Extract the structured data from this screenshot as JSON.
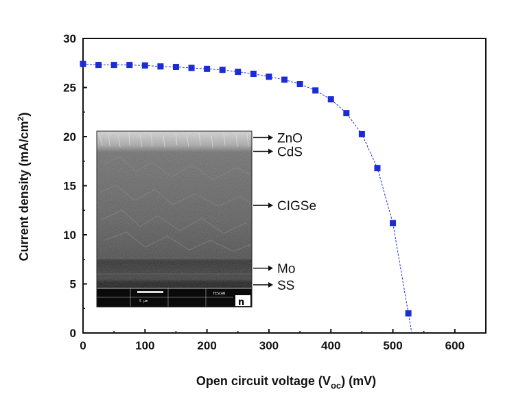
{
  "chart_data": {
    "type": "scatter",
    "xlabel_main": "Open circuit voltage (V",
    "xlabel_sub": "oc",
    "xlabel_tail": ") (mV)",
    "ylabel_main": "Current density (mA/cm",
    "ylabel_sup": "2",
    "ylabel_tail": ")",
    "xlim": [
      0,
      650
    ],
    "ylim": [
      0,
      30
    ],
    "xticks": [
      0,
      100,
      200,
      300,
      400,
      500,
      600
    ],
    "yticks": [
      0,
      5,
      10,
      15,
      20,
      25,
      30
    ],
    "grid": false,
    "series": [
      {
        "color": "#1b2bd6",
        "marker": "square",
        "line_style": "dashed",
        "x": [
          0,
          25,
          50,
          75,
          100,
          125,
          150,
          175,
          200,
          225,
          250,
          275,
          300,
          325,
          350,
          375,
          400,
          425,
          450,
          475,
          500,
          525
        ],
        "y": [
          27.4,
          27.3,
          27.3,
          27.3,
          27.25,
          27.15,
          27.1,
          27.0,
          26.9,
          26.8,
          26.6,
          26.4,
          26.1,
          25.8,
          25.35,
          24.7,
          23.8,
          22.4,
          20.25,
          16.8,
          11.2,
          2.0
        ]
      }
    ],
    "inset": {
      "description_type": "sem-cross-section",
      "layers": [
        {
          "label": "ZnO",
          "y_at": 19.9
        },
        {
          "label": "CdS",
          "y_at": 18.5
        },
        {
          "label": "CIGSe",
          "y_at": 13.0
        },
        {
          "label": "Mo",
          "y_at": 6.6
        },
        {
          "label": "SS",
          "y_at": 4.9
        }
      ],
      "scale_text": "5 µm",
      "brand_text": "TESCAN"
    }
  }
}
